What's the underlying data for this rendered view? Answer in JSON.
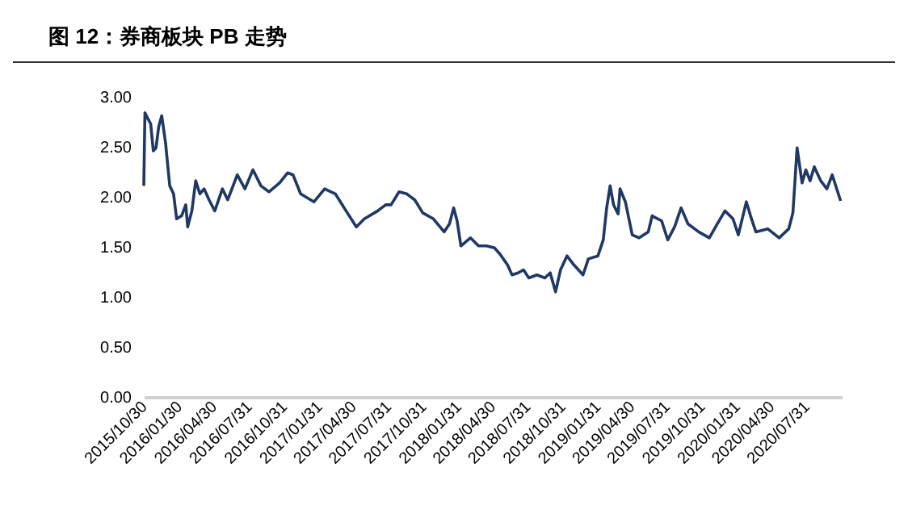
{
  "chart_data": {
    "type": "line",
    "title": "图 12：券商板块 PB 走势",
    "x": [
      "2015-10-30",
      "2015-11-02",
      "2015-11-10",
      "2015-11-17",
      "2015-11-24",
      "2015-12-01",
      "2015-12-08",
      "2015-12-16",
      "2015-12-26",
      "2016-01-06",
      "2016-01-16",
      "2016-01-24",
      "2016-02-06",
      "2016-02-17",
      "2016-02-22",
      "2016-03-04",
      "2016-03-14",
      "2016-03-25",
      "2016-04-05",
      "2016-04-18",
      "2016-05-03",
      "2016-05-23",
      "2016-06-06",
      "2016-07-01",
      "2016-07-21",
      "2016-08-11",
      "2016-09-01",
      "2016-09-22",
      "2016-10-20",
      "2016-11-10",
      "2016-11-24",
      "2016-12-14",
      "2017-01-18",
      "2017-02-15",
      "2017-03-15",
      "2017-04-12",
      "2017-05-09",
      "2017-05-30",
      "2017-07-04",
      "2017-07-25",
      "2017-08-08",
      "2017-08-29",
      "2017-09-18",
      "2017-10-09",
      "2017-10-30",
      "2017-11-27",
      "2017-12-25",
      "2018-01-08",
      "2018-01-19",
      "2018-01-28",
      "2018-02-07",
      "2018-03-04",
      "2018-03-25",
      "2018-04-15",
      "2018-05-06",
      "2018-05-20",
      "2018-06-09",
      "2018-06-21",
      "2018-07-07",
      "2018-07-21",
      "2018-08-04",
      "2018-08-25",
      "2018-09-15",
      "2018-09-29",
      "2018-10-13",
      "2018-10-26",
      "2018-11-12",
      "2018-11-30",
      "2018-12-24",
      "2019-01-07",
      "2019-02-01",
      "2019-02-15",
      "2019-02-24",
      "2019-03-05",
      "2019-03-14",
      "2019-03-26",
      "2019-03-31",
      "2019-04-14",
      "2019-05-02",
      "2019-05-20",
      "2019-06-13",
      "2019-06-23",
      "2019-07-18",
      "2019-08-03",
      "2019-08-21",
      "2019-09-07",
      "2019-09-25",
      "2019-10-23",
      "2019-11-20",
      "2019-12-11",
      "2019-12-31",
      "2020-01-21",
      "2020-02-04",
      "2020-02-25",
      "2020-03-07",
      "2020-03-21",
      "2020-04-21",
      "2020-05-21",
      "2020-06-15",
      "2020-06-26",
      "2020-07-07",
      "2020-07-20",
      "2020-07-30",
      "2020-08-10",
      "2020-08-21",
      "2020-09-07",
      "2020-09-23",
      "2020-10-07",
      "2020-10-29"
    ],
    "series": [
      {
        "color": "#1f3864",
        "values": [
          2.11,
          2.84,
          2.78,
          2.73,
          2.46,
          2.49,
          2.7,
          2.81,
          2.54,
          2.11,
          2.03,
          1.78,
          1.81,
          1.92,
          1.7,
          1.86,
          2.16,
          2.03,
          2.08,
          1.97,
          1.86,
          2.08,
          1.97,
          2.22,
          2.08,
          2.27,
          2.11,
          2.05,
          2.14,
          2.24,
          2.22,
          2.03,
          1.95,
          2.08,
          2.03,
          1.86,
          1.7,
          1.78,
          1.86,
          1.92,
          1.92,
          2.05,
          2.03,
          1.97,
          1.84,
          1.78,
          1.65,
          1.73,
          1.89,
          1.76,
          1.51,
          1.59,
          1.51,
          1.51,
          1.49,
          1.43,
          1.32,
          1.22,
          1.24,
          1.27,
          1.19,
          1.22,
          1.19,
          1.24,
          1.05,
          1.27,
          1.41,
          1.32,
          1.22,
          1.38,
          1.41,
          1.57,
          1.89,
          2.11,
          1.92,
          1.83,
          2.08,
          1.95,
          1.62,
          1.59,
          1.65,
          1.81,
          1.76,
          1.57,
          1.7,
          1.89,
          1.73,
          1.65,
          1.59,
          1.73,
          1.86,
          1.78,
          1.62,
          1.95,
          1.81,
          1.65,
          1.68,
          1.59,
          1.68,
          1.84,
          2.49,
          2.14,
          2.27,
          2.16,
          2.3,
          2.16,
          2.08,
          2.22,
          1.96
        ]
      }
    ],
    "xlim": [
      "2015-10-30",
      "2020-11-01"
    ],
    "xticks": [
      {
        "value": "2015-10-30",
        "label": "2015/10/30"
      },
      {
        "value": "2016-01-30",
        "label": "2016/01/30"
      },
      {
        "value": "2016-04-30",
        "label": "2016/04/30"
      },
      {
        "value": "2016-07-31",
        "label": "2016/07/31"
      },
      {
        "value": "2016-10-31",
        "label": "2016/10/31"
      },
      {
        "value": "2017-01-31",
        "label": "2017/01/31"
      },
      {
        "value": "2017-04-30",
        "label": "2017/04/30"
      },
      {
        "value": "2017-07-31",
        "label": "2017/07/31"
      },
      {
        "value": "2017-10-31",
        "label": "2017/10/31"
      },
      {
        "value": "2018-01-31",
        "label": "2018/01/31"
      },
      {
        "value": "2018-04-30",
        "label": "2018/04/30"
      },
      {
        "value": "2018-07-31",
        "label": "2018/07/31"
      },
      {
        "value": "2018-10-31",
        "label": "2018/10/31"
      },
      {
        "value": "2019-01-31",
        "label": "2019/01/31"
      },
      {
        "value": "2019-04-30",
        "label": "2019/04/30"
      },
      {
        "value": "2019-07-31",
        "label": "2019/07/31"
      },
      {
        "value": "2019-10-31",
        "label": "2019/10/31"
      },
      {
        "value": "2020-01-31",
        "label": "2020/01/31"
      },
      {
        "value": "2020-04-30",
        "label": "2020/04/30"
      },
      {
        "value": "2020-07-31",
        "label": "2020/07/31"
      }
    ],
    "ylim": [
      0,
      3
    ],
    "yticks": [
      {
        "value": 0,
        "label": "0.00"
      },
      {
        "value": 0.5,
        "label": "0.50"
      },
      {
        "value": 1,
        "label": "1.00"
      },
      {
        "value": 1.5,
        "label": "1.50"
      },
      {
        "value": 2,
        "label": "2.00"
      },
      {
        "value": 2.5,
        "label": "2.50"
      },
      {
        "value": 3,
        "label": "3.00"
      }
    ],
    "marker": "none",
    "line_style": "solid"
  }
}
